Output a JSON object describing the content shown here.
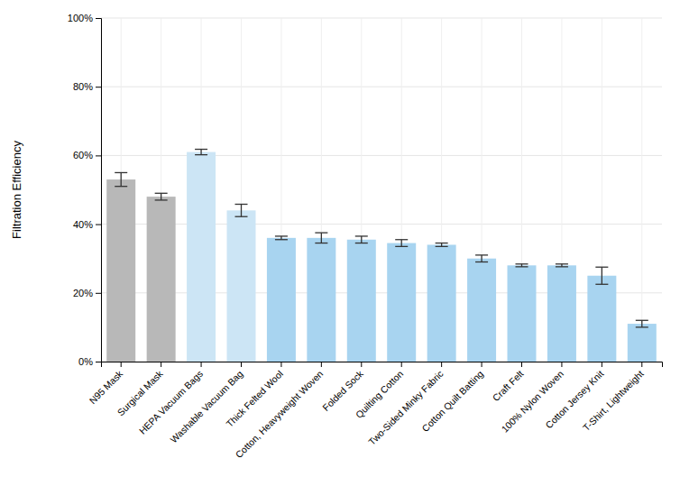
{
  "chart_data": {
    "type": "bar",
    "categories": [
      "N95 Mask",
      "Surgical Mask",
      "HEPA Vacuum Bags",
      "Washable Vacuum Bag",
      "Thick Felted Wool",
      "Cotton, Heavyweight Woven",
      "Folded Sock",
      "Quilting Cotton",
      "Two-Sided Minky Fabric",
      "Cotton Quilt Batting",
      "Craft Felt",
      "100% Nylon Woven",
      "Cotton Jersey Knit",
      "T-Shirt, Lightweight"
    ],
    "values": [
      0.53,
      0.48,
      0.61,
      0.44,
      0.36,
      0.36,
      0.355,
      0.345,
      0.34,
      0.3,
      0.28,
      0.28,
      0.25,
      0.11
    ],
    "errors": [
      0.02,
      0.01,
      0.008,
      0.018,
      0.005,
      0.015,
      0.01,
      0.01,
      0.005,
      0.01,
      0.004,
      0.004,
      0.025,
      0.01
    ],
    "colors": [
      "#b8b8b8",
      "#b8b8b8",
      "#cce5f5",
      "#cce5f5",
      "#a8d4f0",
      "#a8d4f0",
      "#a8d4f0",
      "#a8d4f0",
      "#a8d4f0",
      "#a8d4f0",
      "#a8d4f0",
      "#a8d4f0",
      "#a8d4f0",
      "#a8d4f0"
    ],
    "ylabel": "Filtration Efficiency",
    "ylim": [
      0,
      1.0
    ],
    "yticks": [
      {
        "value": 0.0,
        "label": "0%"
      },
      {
        "value": 0.2,
        "label": "20%"
      },
      {
        "value": 0.4,
        "label": "40%"
      },
      {
        "value": 0.6,
        "label": "60%"
      },
      {
        "value": 0.8,
        "label": "80%"
      },
      {
        "value": 1.0,
        "label": "100%"
      }
    ],
    "grid": true
  }
}
